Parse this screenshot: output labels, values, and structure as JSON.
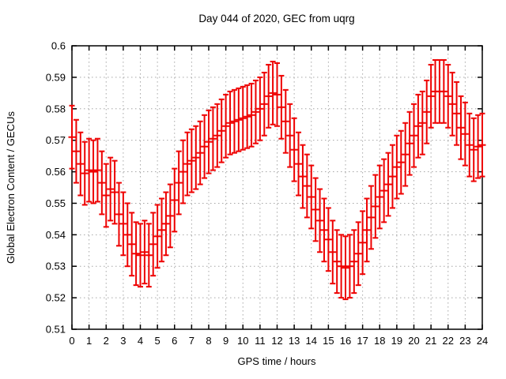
{
  "chart": {
    "title": "Day 044 of 2020, GEC from uqrg",
    "xlabel": "GPS time / hours",
    "ylabel": "Global Electron Content / GECUs"
  },
  "colors": {
    "series_red": "#ee0000",
    "grid_gray": "#a6a6a6",
    "axis_black": "#000000",
    "background": "#ffffff"
  },
  "chart_data": {
    "type": "scatter",
    "style": "yerrorbars",
    "title": "Day 044 of 2020, GEC from uqrg",
    "xlabel": "GPS time / hours",
    "ylabel": "Global Electron Content / GECUs",
    "xlim": [
      0,
      24
    ],
    "ylim": [
      0.51,
      0.6
    ],
    "grid": true,
    "legend": "none",
    "x_tick_labels": [
      "0",
      "1",
      "2",
      "3",
      "4",
      "5",
      "6",
      "7",
      "8",
      "9",
      "10",
      "11",
      "12",
      "13",
      "14",
      "15",
      "16",
      "17",
      "18",
      "19",
      "20",
      "21",
      "22",
      "23",
      "24"
    ],
    "y_tick_labels": [
      "0.51",
      "0.52",
      "0.53",
      "0.54",
      "0.55",
      "0.56",
      "0.57",
      "0.58",
      "0.59",
      "0.6"
    ],
    "series": [
      {
        "name": "GEC from uqrg",
        "color": "#ee0000",
        "yerr": 0.01,
        "x": [
          0,
          0.25,
          0.5,
          0.75,
          1,
          1.25,
          1.5,
          1.75,
          2,
          2.25,
          2.5,
          2.75,
          3,
          3.25,
          3.5,
          3.75,
          4,
          4.25,
          4.5,
          4.75,
          5,
          5.25,
          5.5,
          5.75,
          6,
          6.25,
          6.5,
          6.75,
          7,
          7.25,
          7.5,
          7.75,
          8,
          8.25,
          8.5,
          8.75,
          9,
          9.25,
          9.5,
          9.75,
          10,
          10.25,
          10.5,
          10.75,
          11,
          11.25,
          11.5,
          11.75,
          12,
          12.25,
          12.5,
          12.75,
          13,
          13.25,
          13.5,
          13.75,
          14,
          14.25,
          14.5,
          14.75,
          15,
          15.25,
          15.5,
          15.75,
          16,
          16.25,
          16.5,
          16.75,
          17,
          17.25,
          17.5,
          17.75,
          18,
          18.25,
          18.5,
          18.75,
          19,
          19.25,
          19.5,
          19.75,
          20,
          20.25,
          20.5,
          20.75,
          21,
          21.25,
          21.5,
          21.75,
          22,
          22.25,
          22.5,
          22.75,
          23,
          23.25,
          23.5,
          23.75,
          24
        ],
        "y": [
          0.571,
          0.5665,
          0.5625,
          0.5595,
          0.5605,
          0.56,
          0.5605,
          0.5565,
          0.5525,
          0.5545,
          0.5535,
          0.5465,
          0.5435,
          0.54,
          0.537,
          0.534,
          0.5335,
          0.5345,
          0.5335,
          0.537,
          0.5395,
          0.5415,
          0.5435,
          0.546,
          0.551,
          0.5565,
          0.56,
          0.5625,
          0.5635,
          0.5645,
          0.566,
          0.568,
          0.5695,
          0.5705,
          0.5715,
          0.573,
          0.5745,
          0.5755,
          0.576,
          0.5765,
          0.577,
          0.5775,
          0.578,
          0.579,
          0.58,
          0.5815,
          0.584,
          0.585,
          0.5845,
          0.5805,
          0.576,
          0.5715,
          0.567,
          0.5625,
          0.5585,
          0.5555,
          0.552,
          0.548,
          0.5445,
          0.5415,
          0.5385,
          0.5345,
          0.5315,
          0.53,
          0.5295,
          0.53,
          0.5315,
          0.534,
          0.5375,
          0.5415,
          0.5455,
          0.549,
          0.552,
          0.554,
          0.556,
          0.5585,
          0.5615,
          0.563,
          0.5655,
          0.569,
          0.5715,
          0.5745,
          0.5755,
          0.579,
          0.584,
          0.5855,
          0.5855,
          0.5855,
          0.584,
          0.5815,
          0.5785,
          0.574,
          0.572,
          0.5685,
          0.567,
          0.568,
          0.5685
        ]
      }
    ]
  }
}
